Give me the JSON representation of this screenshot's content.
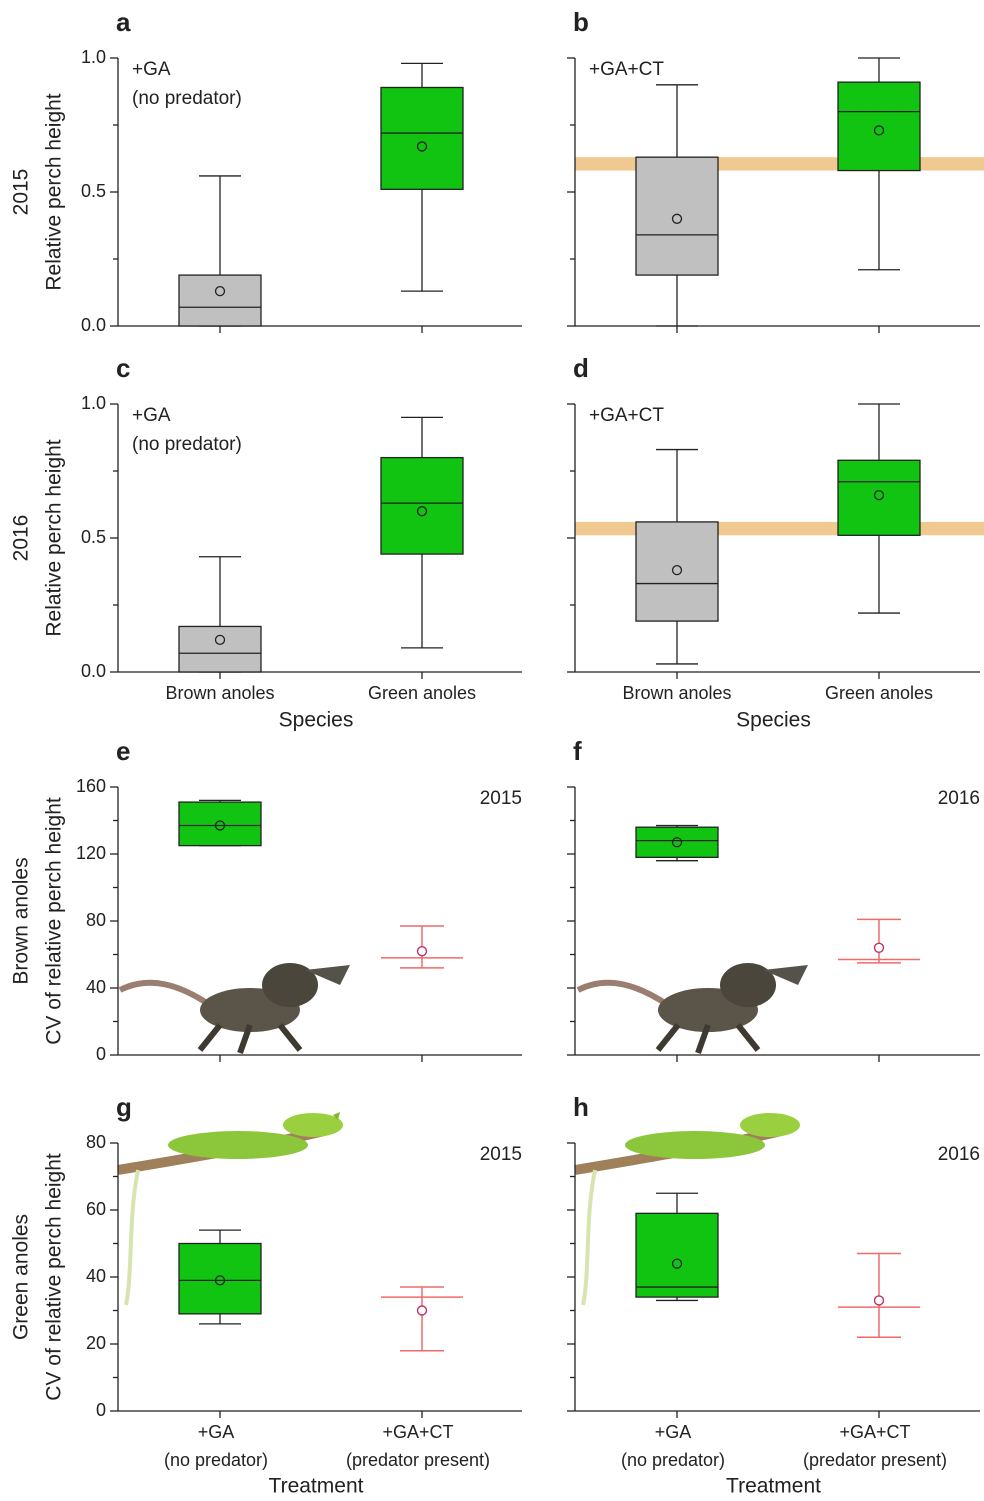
{
  "chart_data": [
    {
      "type": "box",
      "panel": "a",
      "annotation": [
        "+GA",
        "(no predator)"
      ],
      "annotation_position": "top-left",
      "row_label": "2015",
      "ylabel": "Relative perch height",
      "categories": [
        null,
        null
      ],
      "ylim": [
        0,
        1
      ],
      "yticks": [
        {
          "value": 0,
          "label": "0.0"
        },
        {
          "value": 0.5,
          "label": "0.5"
        },
        {
          "value": 1,
          "label": "1.0"
        }
      ],
      "minor_yticks": [
        0.25,
        0.75
      ],
      "tick_labels": true,
      "series": [
        {
          "style": "box",
          "color": "#c0c0c0",
          "low": 0,
          "q1": 0,
          "median": 0.07,
          "q3": 0.19,
          "high": 0.56,
          "mean": 0.13
        },
        {
          "style": "box",
          "color": "#12c412",
          "low": 0.13,
          "q1": 0.51,
          "median": 0.72,
          "q3": 0.89,
          "high": 0.98,
          "mean": 0.67
        }
      ]
    },
    {
      "type": "box",
      "panel": "b",
      "annotation": [
        "+GA+CT"
      ],
      "annotation_position": "top-left",
      "categories": [
        null,
        null
      ],
      "ylim": [
        0,
        1
      ],
      "yticks": [
        0,
        0.5,
        1
      ],
      "minor_yticks": [
        0.25,
        0.75
      ],
      "tick_labels": false,
      "reference_band": [
        0.58,
        0.63
      ],
      "band_color": "#f0c990",
      "series": [
        {
          "style": "box",
          "color": "#c0c0c0",
          "low": 0,
          "q1": 0.19,
          "median": 0.34,
          "q3": 0.63,
          "high": 0.9,
          "mean": 0.4
        },
        {
          "style": "box",
          "color": "#12c412",
          "low": 0.21,
          "q1": 0.58,
          "median": 0.8,
          "q3": 0.91,
          "high": 1,
          "mean": 0.73
        }
      ]
    },
    {
      "type": "box",
      "panel": "c",
      "annotation": [
        "+GA",
        "(no predator)"
      ],
      "annotation_position": "top-left",
      "row_label": "2016",
      "ylabel": "Relative perch height",
      "xlabel": "Species",
      "categories": [
        "Brown anoles",
        "Green anoles"
      ],
      "ylim": [
        0,
        1
      ],
      "yticks": [
        {
          "value": 0,
          "label": "0.0"
        },
        {
          "value": 0.5,
          "label": "0.5"
        },
        {
          "value": 1,
          "label": "1.0"
        }
      ],
      "minor_yticks": [
        0.25,
        0.75
      ],
      "tick_labels": true,
      "series": [
        {
          "style": "box",
          "color": "#c0c0c0",
          "low": 0,
          "q1": 0,
          "median": 0.07,
          "q3": 0.17,
          "high": 0.43,
          "mean": 0.12
        },
        {
          "style": "box",
          "color": "#12c412",
          "low": 0.09,
          "q1": 0.44,
          "median": 0.63,
          "q3": 0.8,
          "high": 0.95,
          "mean": 0.6
        }
      ]
    },
    {
      "type": "box",
      "panel": "d",
      "annotation": [
        "+GA+CT"
      ],
      "annotation_position": "top-left",
      "xlabel": "Species",
      "categories": [
        "Brown anoles",
        "Green anoles"
      ],
      "ylim": [
        0,
        1
      ],
      "yticks": [
        0,
        0.5,
        1
      ],
      "minor_yticks": [
        0.25,
        0.75
      ],
      "tick_labels": false,
      "reference_band": [
        0.51,
        0.56
      ],
      "band_color": "#f0c990",
      "series": [
        {
          "style": "box",
          "color": "#c0c0c0",
          "low": 0.03,
          "q1": 0.19,
          "median": 0.33,
          "q3": 0.56,
          "high": 0.83,
          "mean": 0.38
        },
        {
          "style": "box",
          "color": "#12c412",
          "low": 0.22,
          "q1": 0.51,
          "median": 0.71,
          "q3": 0.79,
          "high": 1,
          "mean": 0.66
        }
      ]
    },
    {
      "type": "box",
      "panel": "e",
      "annotation": [
        "2015"
      ],
      "annotation_position": "top-right",
      "row_label": "Brown anoles",
      "ylabel": "CV of relative perch height",
      "categories": [
        null,
        null
      ],
      "ylim": [
        0,
        160
      ],
      "yticks": [
        0,
        40,
        80,
        120,
        160
      ],
      "minor_yticks": [
        20,
        60,
        100,
        140
      ],
      "tick_labels": true,
      "series": [
        {
          "style": "box",
          "color": "#12c412",
          "low": 125,
          "q1": 125,
          "median": 137,
          "q3": 151,
          "high": 152,
          "mean": 137
        },
        {
          "style": "errorbar",
          "color": "#f06a6a",
          "low": 52,
          "median": 58,
          "high": 77,
          "mean": 62
        }
      ]
    },
    {
      "type": "box",
      "panel": "f",
      "annotation": [
        "2016"
      ],
      "annotation_position": "top-right",
      "categories": [
        null,
        null
      ],
      "ylim": [
        0,
        160
      ],
      "yticks": [
        0,
        40,
        80,
        120,
        160
      ],
      "minor_yticks": [
        20,
        60,
        100,
        140
      ],
      "tick_labels": false,
      "series": [
        {
          "style": "box",
          "color": "#12c412",
          "low": 116,
          "q1": 118,
          "median": 128,
          "q3": 136,
          "high": 137,
          "mean": 127
        },
        {
          "style": "errorbar",
          "color": "#f06a6a",
          "low": 55,
          "median": 57,
          "high": 81,
          "mean": 64
        }
      ]
    },
    {
      "type": "box",
      "panel": "g",
      "annotation": [
        "2015"
      ],
      "annotation_position": "top-right",
      "row_label": "Green anoles",
      "ylabel": "CV of relative perch height",
      "xlabel": "Treatment",
      "categories": [
        [
          "+GA",
          "(no predator)"
        ],
        [
          "+GA+CT",
          "(predator present)"
        ]
      ],
      "ylim": [
        0,
        80
      ],
      "yticks": [
        0,
        20,
        40,
        60,
        80
      ],
      "minor_yticks": [
        10,
        30,
        50,
        70
      ],
      "tick_labels": true,
      "series": [
        {
          "style": "box",
          "color": "#12c412",
          "low": 26,
          "q1": 29,
          "median": 39,
          "q3": 50,
          "high": 54,
          "mean": 39
        },
        {
          "style": "errorbar",
          "color": "#f06a6a",
          "low": 18,
          "median": 34,
          "high": 37,
          "mean": 30
        }
      ]
    },
    {
      "type": "box",
      "panel": "h",
      "annotation": [
        "2016"
      ],
      "annotation_position": "top-right",
      "xlabel": "Treatment",
      "categories": [
        [
          "+GA",
          "(no predator)"
        ],
        [
          "+GA+CT",
          "(predator present)"
        ]
      ],
      "ylim": [
        0,
        80
      ],
      "yticks": [
        0,
        20,
        40,
        60,
        80
      ],
      "minor_yticks": [
        10,
        30,
        50,
        70
      ],
      "tick_labels": false,
      "series": [
        {
          "style": "box",
          "color": "#12c412",
          "low": 33,
          "q1": 34,
          "median": 37,
          "q3": 59,
          "high": 65,
          "mean": 44
        },
        {
          "style": "errorbar",
          "color": "#f06a6a",
          "low": 22,
          "median": 31,
          "high": 47,
          "mean": 33
        }
      ]
    }
  ]
}
